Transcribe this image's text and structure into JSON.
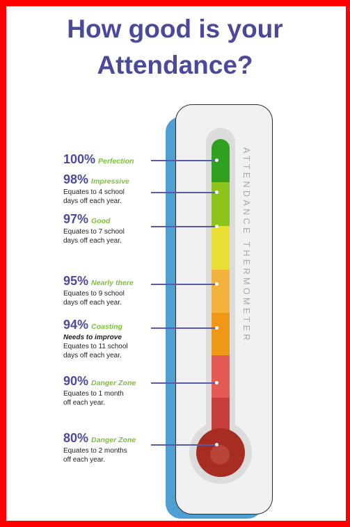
{
  "title": {
    "line1": "How good is your",
    "line2": "Attendance?"
  },
  "thermometer": {
    "label": "ATTENDANCE THERMOMETER",
    "segment_colors": [
      "#2fa01f",
      "#8cc41c",
      "#eadd33",
      "#f3b23c",
      "#ef9716",
      "#e45a55",
      "#c8403d",
      "#a72c22"
    ]
  },
  "levels": [
    {
      "percent": "100%",
      "label": "Perfection",
      "note": "",
      "desc1": "",
      "desc2": ""
    },
    {
      "percent": "98%",
      "label": "Impressive",
      "note": "",
      "desc1": "Equates to 4 school",
      "desc2": "days off each year."
    },
    {
      "percent": "97%",
      "label": "Good",
      "note": "",
      "desc1": "Equates to 7 school",
      "desc2": "days off each year."
    },
    {
      "percent": "95%",
      "label": "Nearly there",
      "note": "",
      "desc1": "Equates to 9 school",
      "desc2": "days off each year."
    },
    {
      "percent": "94%",
      "label": "Coasting",
      "note": "Needs to improve",
      "desc1": "Equates to 11 school",
      "desc2": "days off each year."
    },
    {
      "percent": "90%",
      "label": "Danger Zone",
      "note": "",
      "desc1": "Equates to 1 month",
      "desc2": "off each year."
    },
    {
      "percent": "80%",
      "label": "Danger Zone",
      "note": "",
      "desc1": "Equates to 2 months",
      "desc2": "off each year."
    }
  ]
}
